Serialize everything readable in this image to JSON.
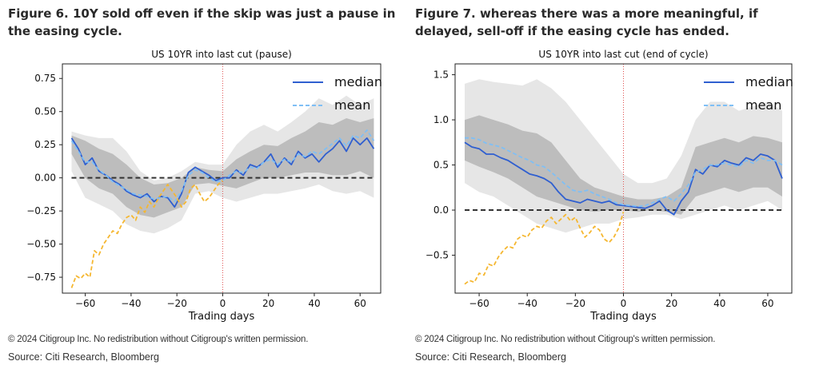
{
  "figures": [
    {
      "heading": "Figure 6. 10Y sold off even if the skip was just a pause in the easing cycle.",
      "copyright": "© 2024 Citigroup Inc. No redistribution without Citigroup's written permission.",
      "source": "Source: Citi Research, Bloomberg"
    },
    {
      "heading": "Figure 7. whereas there was a more meaningful, if delayed, sell-off if the easing cycle has ended.",
      "copyright": "© 2024 Citigroup Inc. No redistribution without Citigroup's written permission.",
      "source": "Source: Citi Research, Bloomberg"
    }
  ],
  "colors": {
    "median": "#2f5fd0",
    "mean": "#7fbff5",
    "current": "#f5b731",
    "outer_band": "#e6e6e6",
    "inner_band": "#bdbdbd",
    "zero_line": "#333333",
    "cut_line": "#e05050"
  },
  "chart_data": [
    {
      "type": "line",
      "title": "US 10YR into last cut (pause)",
      "xlabel": "Trading days",
      "ylabel": "",
      "xlim": [
        -70,
        69
      ],
      "ylim": [
        -0.87,
        0.86
      ],
      "xticks": [
        -60,
        -40,
        -20,
        0,
        20,
        40,
        60
      ],
      "yticks": [
        -0.75,
        -0.5,
        -0.25,
        0.0,
        0.25,
        0.5,
        0.75
      ],
      "ytick_labels": [
        "−0.75",
        "−0.50",
        "−0.25",
        "0.00",
        "0.25",
        "0.50",
        "0.75"
      ],
      "xtick_labels": [
        "−60",
        "−40",
        "−20",
        "0",
        "20",
        "40",
        "60"
      ],
      "legend": "top-right",
      "zero_line": 0,
      "vertical_line_x": 0,
      "series": [
        {
          "name": "median",
          "style": "solid",
          "x": [
            -66,
            -63,
            -60,
            -57,
            -54,
            -51,
            -48,
            -45,
            -42,
            -39,
            -36,
            -33,
            -30,
            -27,
            -24,
            -21,
            -18,
            -15,
            -12,
            -9,
            -6,
            -3,
            0,
            3,
            6,
            9,
            12,
            15,
            18,
            21,
            24,
            27,
            30,
            33,
            36,
            39,
            42,
            45,
            48,
            51,
            54,
            57,
            60,
            63,
            66
          ],
          "y": [
            0.3,
            0.22,
            0.1,
            0.15,
            0.05,
            0.02,
            -0.02,
            -0.05,
            -0.1,
            -0.13,
            -0.15,
            -0.12,
            -0.18,
            -0.14,
            -0.15,
            -0.22,
            -0.12,
            0.04,
            0.08,
            0.05,
            0.02,
            -0.02,
            0.0,
            0.0,
            0.06,
            0.02,
            0.1,
            0.08,
            0.12,
            0.18,
            0.08,
            0.15,
            0.1,
            0.2,
            0.15,
            0.18,
            0.12,
            0.18,
            0.22,
            0.28,
            0.2,
            0.3,
            0.25,
            0.3,
            0.22
          ]
        },
        {
          "name": "mean",
          "style": "dashed",
          "x": [
            -66,
            -63,
            -60,
            -57,
            -54,
            -51,
            -48,
            -45,
            -42,
            -39,
            -36,
            -33,
            -30,
            -27,
            -24,
            -21,
            -18,
            -15,
            -12,
            -9,
            -6,
            -3,
            0,
            3,
            6,
            9,
            12,
            15,
            18,
            21,
            24,
            27,
            30,
            33,
            36,
            39,
            42,
            45,
            48,
            51,
            54,
            57,
            60,
            63,
            66
          ],
          "y": [
            0.28,
            0.2,
            0.12,
            0.12,
            0.06,
            0.02,
            -0.03,
            -0.06,
            -0.09,
            -0.12,
            -0.13,
            -0.14,
            -0.16,
            -0.15,
            -0.14,
            -0.18,
            -0.1,
            0.02,
            0.06,
            0.04,
            0.0,
            -0.03,
            -0.02,
            0.02,
            0.05,
            0.04,
            0.08,
            0.07,
            0.12,
            0.14,
            0.1,
            0.14,
            0.12,
            0.18,
            0.16,
            0.2,
            0.18,
            0.22,
            0.26,
            0.3,
            0.24,
            0.32,
            0.3,
            0.36,
            0.28
          ]
        },
        {
          "name": "",
          "style": "dashed",
          "x": [
            -66,
            -64,
            -62,
            -60,
            -58,
            -56,
            -54,
            -52,
            -50,
            -48,
            -46,
            -44,
            -42,
            -40,
            -38,
            -36,
            -34,
            -32,
            -30,
            -28,
            -26,
            -24,
            -22,
            -20,
            -18,
            -16,
            -14,
            -12,
            -10,
            -8,
            -6,
            -4,
            -2,
            0
          ],
          "y": [
            -0.83,
            -0.74,
            -0.76,
            -0.72,
            -0.75,
            -0.55,
            -0.58,
            -0.5,
            -0.45,
            -0.4,
            -0.42,
            -0.35,
            -0.3,
            -0.28,
            -0.32,
            -0.22,
            -0.26,
            -0.18,
            -0.22,
            -0.15,
            -0.1,
            -0.05,
            -0.1,
            -0.15,
            -0.22,
            -0.18,
            -0.08,
            -0.05,
            -0.12,
            -0.18,
            -0.15,
            -0.1,
            -0.05,
            -0.02
          ]
        }
      ],
      "bands": {
        "x": [
          -66,
          -60,
          -54,
          -48,
          -42,
          -36,
          -30,
          -24,
          -18,
          -12,
          -6,
          0,
          6,
          12,
          18,
          24,
          30,
          36,
          42,
          48,
          54,
          60,
          66
        ],
        "outer_lower": [
          0.05,
          -0.15,
          -0.2,
          -0.25,
          -0.35,
          -0.4,
          -0.42,
          -0.38,
          -0.32,
          -0.12,
          -0.1,
          -0.15,
          -0.18,
          -0.15,
          -0.12,
          -0.12,
          -0.1,
          -0.08,
          -0.05,
          -0.1,
          -0.12,
          -0.1,
          -0.15
        ],
        "outer_upper": [
          0.35,
          0.32,
          0.3,
          0.3,
          0.2,
          0.05,
          -0.02,
          0.0,
          0.05,
          0.12,
          0.1,
          0.1,
          0.25,
          0.35,
          0.4,
          0.35,
          0.42,
          0.5,
          0.6,
          0.55,
          0.62,
          0.55,
          0.6
        ],
        "inner_lower": [
          0.18,
          0.0,
          -0.08,
          -0.12,
          -0.22,
          -0.28,
          -0.3,
          -0.26,
          -0.22,
          -0.05,
          -0.04,
          -0.06,
          -0.08,
          -0.04,
          0.0,
          0.0,
          0.02,
          0.04,
          0.04,
          0.02,
          0.02,
          0.05,
          0.0
        ],
        "inner_upper": [
          0.32,
          0.28,
          0.22,
          0.18,
          0.1,
          0.0,
          -0.05,
          -0.04,
          0.0,
          0.08,
          0.06,
          0.05,
          0.14,
          0.2,
          0.25,
          0.24,
          0.3,
          0.35,
          0.42,
          0.4,
          0.45,
          0.42,
          0.45
        ]
      }
    },
    {
      "type": "line",
      "title": "US 10YR into last cut (end of cycle)",
      "xlabel": "Trading days",
      "ylabel": "",
      "xlim": [
        -70,
        70
      ],
      "ylim": [
        -0.92,
        1.62
      ],
      "xticks": [
        -60,
        -40,
        -20,
        0,
        20,
        40,
        60
      ],
      "yticks": [
        -0.5,
        0.0,
        0.5,
        1.0,
        1.5
      ],
      "ytick_labels": [
        "−0.5",
        "0.0",
        "0.5",
        "1.0",
        "1.5"
      ],
      "xtick_labels": [
        "−60",
        "−40",
        "−20",
        "0",
        "20",
        "40",
        "60"
      ],
      "legend": "top-right",
      "zero_line": 0,
      "vertical_line_x": 0,
      "series": [
        {
          "name": "median",
          "style": "solid",
          "x": [
            -66,
            -63,
            -60,
            -57,
            -54,
            -51,
            -48,
            -45,
            -42,
            -39,
            -36,
            -33,
            -30,
            -27,
            -24,
            -21,
            -18,
            -15,
            -12,
            -9,
            -6,
            -3,
            0,
            3,
            6,
            9,
            12,
            15,
            18,
            21,
            24,
            27,
            30,
            33,
            36,
            39,
            42,
            45,
            48,
            51,
            54,
            57,
            60,
            63,
            66
          ],
          "y": [
            0.75,
            0.7,
            0.68,
            0.62,
            0.62,
            0.58,
            0.55,
            0.5,
            0.45,
            0.4,
            0.38,
            0.35,
            0.3,
            0.2,
            0.12,
            0.1,
            0.08,
            0.12,
            0.1,
            0.08,
            0.1,
            0.06,
            0.05,
            0.04,
            0.03,
            0.02,
            0.05,
            0.1,
            0.0,
            -0.05,
            0.1,
            0.2,
            0.45,
            0.4,
            0.5,
            0.48,
            0.55,
            0.52,
            0.5,
            0.58,
            0.55,
            0.62,
            0.6,
            0.55,
            0.35
          ]
        },
        {
          "name": "mean",
          "style": "dashed",
          "x": [
            -66,
            -63,
            -60,
            -57,
            -54,
            -51,
            -48,
            -45,
            -42,
            -39,
            -36,
            -33,
            -30,
            -27,
            -24,
            -21,
            -18,
            -15,
            -12,
            -9,
            -6,
            -3,
            0,
            3,
            6,
            9,
            12,
            15,
            18,
            21,
            24,
            27,
            30,
            33,
            36,
            39,
            42,
            45,
            48,
            51,
            54,
            57,
            60,
            63,
            66
          ],
          "y": [
            0.8,
            0.8,
            0.78,
            0.74,
            0.72,
            0.7,
            0.66,
            0.62,
            0.58,
            0.55,
            0.5,
            0.48,
            0.42,
            0.35,
            0.28,
            0.22,
            0.2,
            0.22,
            0.18,
            0.15,
            0.12,
            0.08,
            0.06,
            0.05,
            0.04,
            0.05,
            0.08,
            0.12,
            0.15,
            0.1,
            0.18,
            0.28,
            0.42,
            0.45,
            0.5,
            0.5,
            0.52,
            0.5,
            0.48,
            0.55,
            0.52,
            0.58,
            0.55,
            0.55,
            0.5
          ]
        },
        {
          "name": "",
          "style": "dashed",
          "x": [
            -66,
            -64,
            -62,
            -60,
            -58,
            -56,
            -54,
            -52,
            -50,
            -48,
            -46,
            -44,
            -42,
            -40,
            -38,
            -36,
            -34,
            -32,
            -30,
            -28,
            -26,
            -24,
            -22,
            -20,
            -18,
            -16,
            -14,
            -12,
            -10,
            -8,
            -6,
            -4,
            -2,
            0
          ],
          "y": [
            -0.82,
            -0.78,
            -0.8,
            -0.7,
            -0.72,
            -0.6,
            -0.62,
            -0.52,
            -0.45,
            -0.4,
            -0.42,
            -0.32,
            -0.28,
            -0.3,
            -0.22,
            -0.18,
            -0.2,
            -0.12,
            -0.08,
            -0.15,
            -0.1,
            -0.05,
            -0.12,
            -0.08,
            -0.2,
            -0.3,
            -0.25,
            -0.18,
            -0.22,
            -0.32,
            -0.36,
            -0.3,
            -0.2,
            -0.02
          ]
        }
      ],
      "bands": {
        "x": [
          -66,
          -60,
          -54,
          -48,
          -42,
          -36,
          -30,
          -24,
          -18,
          -12,
          -6,
          0,
          6,
          12,
          18,
          24,
          30,
          36,
          42,
          48,
          54,
          60,
          66
        ],
        "outer_lower": [
          0.3,
          0.2,
          0.15,
          0.05,
          -0.05,
          -0.15,
          -0.2,
          -0.25,
          -0.2,
          -0.15,
          -0.15,
          -0.1,
          -0.08,
          -0.05,
          -0.05,
          -0.1,
          -0.05,
          0.0,
          0.05,
          0.0,
          0.05,
          0.1,
          0.0
        ],
        "outer_upper": [
          1.4,
          1.45,
          1.42,
          1.4,
          1.38,
          1.45,
          1.35,
          1.2,
          1.0,
          0.8,
          0.6,
          0.4,
          0.3,
          0.3,
          0.35,
          0.6,
          1.0,
          1.2,
          1.2,
          1.1,
          1.15,
          1.2,
          1.1
        ],
        "inner_lower": [
          0.55,
          0.48,
          0.42,
          0.35,
          0.25,
          0.15,
          0.1,
          0.05,
          0.0,
          -0.02,
          0.0,
          0.0,
          -0.02,
          0.0,
          -0.02,
          -0.05,
          0.15,
          0.2,
          0.25,
          0.2,
          0.25,
          0.25,
          0.15
        ],
        "inner_upper": [
          1.0,
          1.05,
          1.0,
          0.95,
          0.88,
          0.85,
          0.75,
          0.55,
          0.35,
          0.25,
          0.2,
          0.15,
          0.12,
          0.12,
          0.15,
          0.25,
          0.7,
          0.75,
          0.8,
          0.75,
          0.82,
          0.8,
          0.75
        ]
      }
    }
  ]
}
